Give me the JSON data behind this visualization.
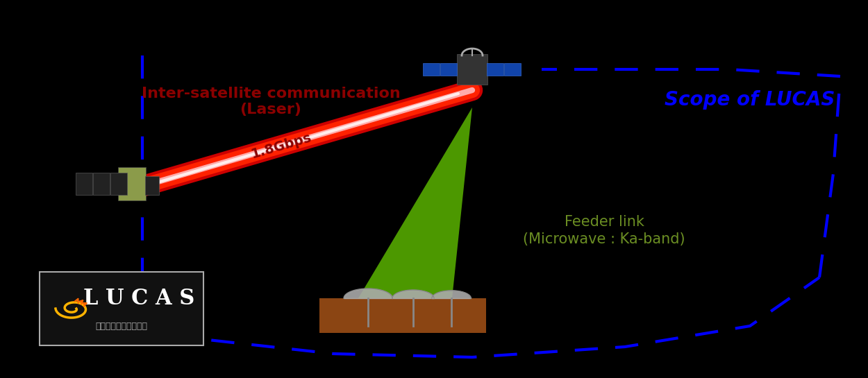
{
  "bg_color": "#000000",
  "scope_text": "Scope of LUCAS",
  "scope_color": "#0000FF",
  "scope_fontsize": 20,
  "inter_sat_label1": "Inter-satellite communication",
  "inter_sat_label2": "(Laser)",
  "inter_sat_color": "#8B0000",
  "inter_sat_fontsize": 16,
  "speed_label": "1.8Gbps",
  "speed_color": "#8B0000",
  "speed_fontsize": 14,
  "feeder_label1": "Feeder link",
  "feeder_label2": "(Microwave : Ka-band)",
  "feeder_color": "#6B8E23",
  "feeder_fontsize": 15,
  "dashed_border_color": "#0000FF",
  "laser_color_outer": "#CC0000",
  "laser_color_inner": "#FF9999",
  "green_beam_color": "#66CC00",
  "green_beam_alpha": 0.75,
  "lucas_logo_text": "L U C A S",
  "lucas_sub_text": "光衛星間通信システム"
}
